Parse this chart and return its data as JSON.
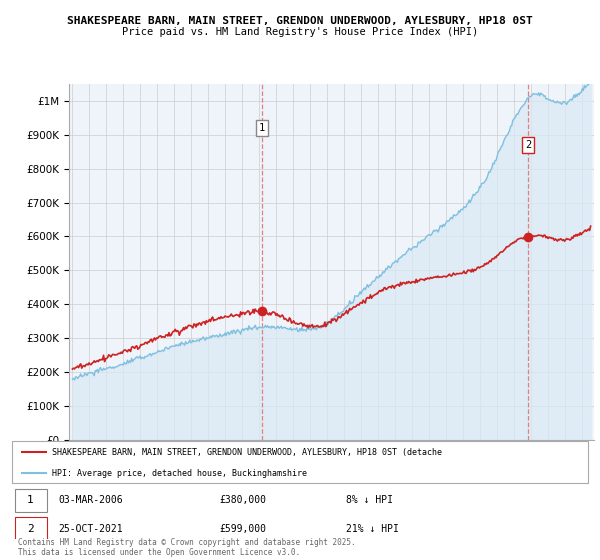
{
  "title": "SHAKESPEARE BARN, MAIN STREET, GRENDON UNDERWOOD, AYLESBURY, HP18 0ST",
  "subtitle": "Price paid vs. HM Land Registry's House Price Index (HPI)",
  "hpi_color": "#7fbfdf",
  "hpi_fill_color": "#daeaf5",
  "price_color": "#cc2222",
  "vline_color": "#e08080",
  "marker1_year": 2006.17,
  "marker2_year": 2021.82,
  "marker1_price": 380000,
  "marker2_price": 599000,
  "legend1": "SHAKESPEARE BARN, MAIN STREET, GRENDON UNDERWOOD, AYLESBURY, HP18 0ST (detache",
  "legend2": "HPI: Average price, detached house, Buckinghamshire",
  "footer": "Contains HM Land Registry data © Crown copyright and database right 2025.\nThis data is licensed under the Open Government Licence v3.0.",
  "ylim": [
    0,
    1050000
  ],
  "xlim_start": 1994.8,
  "xlim_end": 2025.7,
  "bg_color": "#eef4fa"
}
